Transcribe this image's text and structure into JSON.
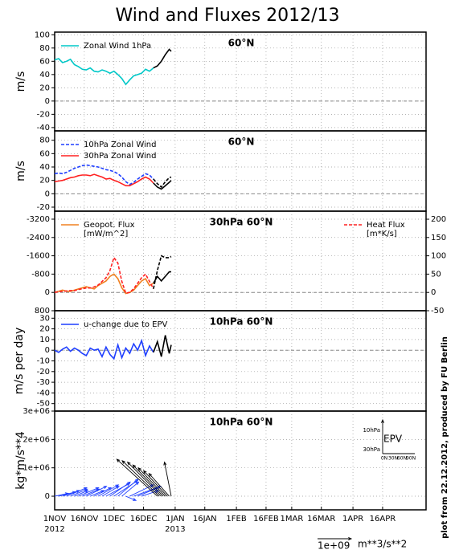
{
  "title": "Wind and Fluxes 2012/13",
  "side_note": "plot from 22.12.2012, produced by FU Berlin",
  "scale_arrow": {
    "value": 1000000000,
    "label": "1e+09",
    "unit": "m**3/s**2"
  },
  "x_axis": {
    "xlim": [
      0,
      188
    ],
    "xticks": [
      {
        "value": 0,
        "label": "1NOV"
      },
      {
        "value": 15,
        "label": "16NOV"
      },
      {
        "value": 30,
        "label": "1DEC"
      },
      {
        "value": 45,
        "label": "16DEC"
      },
      {
        "value": 61,
        "label": "1JAN"
      },
      {
        "value": 76,
        "label": "16JAN"
      },
      {
        "value": 92,
        "label": "1FEB"
      },
      {
        "value": 107,
        "label": "16FEB"
      },
      {
        "value": 120,
        "label": "1MAR"
      },
      {
        "value": 135,
        "label": "16MAR"
      },
      {
        "value": 151,
        "label": "1APR"
      },
      {
        "value": 166,
        "label": "16APR"
      }
    ],
    "years": [
      {
        "value": 0,
        "label": "2012"
      },
      {
        "value": 61,
        "label": "2013"
      }
    ],
    "grid": true
  },
  "chart_data": [
    {
      "type": "line",
      "annotation": "60°N",
      "ylabel": "m/s",
      "ylim": [
        -45,
        104
      ],
      "yticks": [
        -40,
        -20,
        0,
        20,
        40,
        60,
        80,
        100
      ],
      "grid": true,
      "zero_line": true,
      "legend": "upper left",
      "series": [
        {
          "name": "Zonal Wind 1hPa",
          "color": "#00c8c8",
          "x": [
            0,
            2,
            4,
            6,
            8,
            10,
            12,
            14,
            16,
            18,
            20,
            22,
            24,
            26,
            28,
            30,
            32,
            34,
            36,
            38,
            40,
            42,
            44,
            46,
            48,
            50
          ],
          "values": [
            62,
            64,
            58,
            60,
            63,
            55,
            52,
            48,
            47,
            50,
            45,
            44,
            47,
            45,
            42,
            45,
            40,
            34,
            25,
            32,
            38,
            40,
            42,
            48,
            45,
            50
          ]
        },
        {
          "color": "#000000",
          "x": [
            50,
            52,
            54,
            56,
            58,
            59
          ],
          "values": [
            50,
            53,
            60,
            70,
            78,
            75
          ]
        }
      ]
    },
    {
      "type": "line",
      "annotation": "60°N",
      "ylabel": "m/s",
      "ylim": [
        -26,
        94
      ],
      "yticks": [
        -20,
        0,
        20,
        40,
        60,
        80
      ],
      "grid": true,
      "zero_line": true,
      "legend": "upper left",
      "series": [
        {
          "name": "10hPa Zonal Wind",
          "color": "#1f3fff",
          "dashed": true,
          "x": [
            0,
            2,
            4,
            6,
            8,
            10,
            12,
            14,
            16,
            18,
            20,
            22,
            24,
            26,
            28,
            30,
            32,
            34,
            36,
            38,
            40,
            42,
            44,
            46,
            48,
            50
          ],
          "values": [
            30,
            31,
            30,
            32,
            35,
            38,
            40,
            42,
            43,
            42,
            41,
            40,
            38,
            36,
            35,
            33,
            30,
            25,
            18,
            14,
            17,
            22,
            26,
            30,
            28,
            22
          ]
        },
        {
          "name": "30hPa Zonal Wind",
          "color": "#ff2020",
          "x": [
            0,
            2,
            4,
            6,
            8,
            10,
            12,
            14,
            16,
            18,
            20,
            22,
            24,
            26,
            28,
            30,
            32,
            34,
            36,
            38,
            40,
            42,
            44,
            46,
            48,
            50
          ],
          "values": [
            18,
            19,
            20,
            22,
            24,
            25,
            27,
            28,
            28,
            27,
            29,
            27,
            25,
            22,
            23,
            20,
            18,
            15,
            12,
            12,
            15,
            18,
            22,
            25,
            22,
            16
          ]
        },
        {
          "color": "#000000",
          "dashed": true,
          "x": [
            50,
            52,
            54,
            56,
            58,
            59
          ],
          "values": [
            22,
            15,
            10,
            18,
            24,
            25
          ]
        },
        {
          "color": "#000000",
          "x": [
            50,
            52,
            54,
            56,
            58,
            59
          ],
          "values": [
            16,
            10,
            7,
            12,
            17,
            20
          ]
        }
      ]
    },
    {
      "type": "line",
      "annotation": "30hPa 60°N",
      "ylim": [
        800,
        -3550
      ],
      "yticks": [
        800,
        0,
        -800,
        -1600,
        -2400,
        -3200
      ],
      "y2lim": [
        -50,
        222
      ],
      "y2ticks": [
        -50,
        0,
        50,
        100,
        150,
        200
      ],
      "grid": true,
      "zero_line": true,
      "legend": "upper left",
      "series": [
        {
          "name": "Geopot. Flux",
          "unit": "[mW/m^2]",
          "color": "#f08020",
          "x": [
            0,
            2,
            4,
            6,
            8,
            10,
            12,
            14,
            16,
            18,
            20,
            22,
            24,
            26,
            28,
            30,
            32,
            34,
            36,
            38,
            40,
            42,
            44,
            46,
            48,
            50
          ],
          "values": [
            0,
            -50,
            -100,
            -50,
            -50,
            -100,
            -150,
            -200,
            -250,
            -200,
            -150,
            -300,
            -400,
            -500,
            -700,
            -800,
            -600,
            -200,
            50,
            0,
            -100,
            -300,
            -500,
            -600,
            -300,
            -400
          ]
        },
        {
          "name": "Heat Flux",
          "unit": "[m*K/s]",
          "color": "#ff2020",
          "dashed": true,
          "axis": "y2",
          "x": [
            0,
            2,
            4,
            6,
            8,
            10,
            12,
            14,
            16,
            18,
            20,
            22,
            24,
            26,
            28,
            30,
            32,
            34,
            36,
            38,
            40,
            42,
            44,
            46,
            48,
            50
          ],
          "values": [
            0,
            2,
            3,
            4,
            5,
            5,
            8,
            10,
            12,
            12,
            15,
            20,
            30,
            40,
            60,
            95,
            80,
            30,
            -2,
            0,
            10,
            25,
            40,
            50,
            30,
            10
          ]
        },
        {
          "color": "#000000",
          "x": [
            50,
            52,
            54,
            56,
            58,
            59
          ],
          "values": [
            -400,
            -700,
            -500,
            -700,
            -900,
            -900
          ]
        },
        {
          "color": "#000000",
          "dashed": true,
          "axis": "y2",
          "x": [
            50,
            52,
            54,
            56,
            58,
            59
          ],
          "values": [
            10,
            60,
            100,
            95,
            95,
            98
          ]
        }
      ]
    },
    {
      "type": "line",
      "annotation": "10hPa 60°N",
      "ylabel": "m/s per day",
      "ylim": [
        -57,
        37
      ],
      "yticks": [
        30,
        20,
        10,
        0,
        -10,
        -20,
        -30,
        -40,
        -50
      ],
      "grid": true,
      "zero_line": true,
      "legend": "upper left",
      "series": [
        {
          "name": "u-change due to EPV",
          "color": "#1f3fff",
          "x": [
            0,
            2,
            4,
            6,
            8,
            10,
            12,
            14,
            16,
            18,
            20,
            22,
            24,
            26,
            28,
            30,
            32,
            34,
            36,
            38,
            40,
            42,
            44,
            46,
            48,
            50
          ],
          "values": [
            0,
            -2,
            1,
            3,
            -1,
            2,
            0,
            -3,
            -5,
            2,
            0,
            1,
            -6,
            3,
            -4,
            -8,
            5,
            -7,
            2,
            -3,
            6,
            0,
            9,
            -5,
            4,
            -2
          ]
        },
        {
          "color": "#000000",
          "x": [
            50,
            52,
            54,
            56,
            58,
            59
          ],
          "values": [
            -2,
            8,
            -6,
            14,
            -3,
            5
          ]
        }
      ]
    },
    {
      "type": "quiver",
      "annotation": "10hPa 60°N",
      "ylabel": "kg*m/s**4",
      "ylim": [
        -480000,
        3000000
      ],
      "yticks": [
        0,
        {
          "value": 1000000,
          "label": "1e+06"
        },
        {
          "value": 2000000,
          "label": "2e+06"
        },
        {
          "value": 3000000,
          "label": "3e+06"
        }
      ],
      "grid": true,
      "inset": {
        "title": "EPV",
        "y_labels": [
          "10hPa",
          "30hPa"
        ],
        "x_labels": [
          "0N",
          "30N",
          "60N",
          "90N"
        ]
      },
      "series": [
        {
          "color": "#1f3fff",
          "x": [
            0,
            2,
            4,
            6,
            8,
            10,
            12,
            14,
            16,
            18,
            20,
            22,
            24,
            26,
            28,
            30,
            32,
            34,
            36,
            38,
            40,
            42,
            44
          ],
          "values": [
            100000,
            150000,
            200000,
            300000,
            250000,
            200000,
            300000,
            250000,
            350000,
            200000,
            300000,
            400000,
            350000,
            450000,
            500000,
            550000,
            600000,
            500000,
            -150000,
            400000,
            350000,
            300000,
            200000
          ],
          "u": [
            400000000,
            500000000,
            500000000,
            600000000,
            500000000,
            400000000,
            600000000,
            500000000,
            600000000,
            400000000,
            500000000,
            600000000,
            500000000,
            700000000,
            600000000,
            700000000,
            600000000,
            500000000,
            300000000,
            700000000,
            800000000,
            600000000,
            500000000
          ]
        },
        {
          "color": "#000000",
          "x": [
            52,
            53,
            54,
            55,
            56,
            57,
            58,
            59
          ],
          "values": [
            1300000,
            1250000,
            1200000,
            1100000,
            1000000,
            900000,
            800000,
            1200000
          ],
          "u": [
            -1200000000,
            -1100000000,
            -1000000000,
            -900000000,
            -800000000,
            -700000000,
            -600000000,
            -200000000
          ]
        }
      ]
    }
  ]
}
